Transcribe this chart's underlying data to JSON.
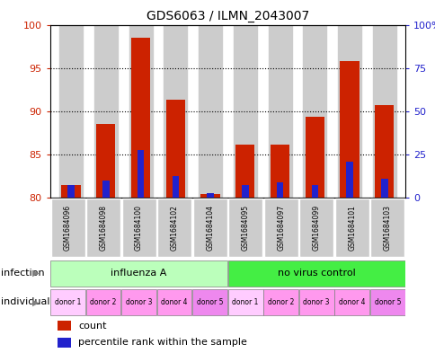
{
  "title": "GDS6063 / ILMN_2043007",
  "samples": [
    "GSM1684096",
    "GSM1684098",
    "GSM1684100",
    "GSM1684102",
    "GSM1684104",
    "GSM1684095",
    "GSM1684097",
    "GSM1684099",
    "GSM1684101",
    "GSM1684103"
  ],
  "red_values": [
    81.5,
    88.5,
    98.5,
    91.3,
    80.4,
    86.1,
    86.1,
    89.4,
    95.8,
    90.7
  ],
  "blue_values": [
    7.5,
    10.0,
    27.5,
    12.5,
    2.5,
    7.5,
    9.0,
    7.5,
    21.0,
    11.0
  ],
  "ymin": 80,
  "ymax": 100,
  "yticks_left": [
    80,
    85,
    90,
    95,
    100
  ],
  "yticks_right": [
    0,
    25,
    50,
    75,
    100
  ],
  "bar_width": 0.55,
  "red_color": "#CC2200",
  "blue_color": "#2222CC",
  "tick_color_left": "#CC2200",
  "tick_color_right": "#2222CC",
  "bar_bg_color": "#CCCCCC",
  "infection_groups": [
    {
      "label": "influenza A",
      "span": 5,
      "color": "#BBFFBB"
    },
    {
      "label": "no virus control",
      "span": 5,
      "color": "#44EE44"
    }
  ],
  "donors": [
    "donor 1",
    "donor 2",
    "donor 3",
    "donor 4",
    "donor 5",
    "donor 1",
    "donor 2",
    "donor 3",
    "donor 4",
    "donor 5"
  ],
  "donor_colors": [
    "#FFCCFF",
    "#FF99EE",
    "#FF99EE",
    "#FF99EE",
    "#EE88EE",
    "#FFCCFF",
    "#FF99EE",
    "#FF99EE",
    "#FF99EE",
    "#EE88EE"
  ],
  "infection_label": "infection",
  "individual_label": "individual",
  "legend_count_label": "count",
  "legend_percentile_label": "percentile rank within the sample",
  "grid_yticks": [
    85,
    90,
    95
  ]
}
